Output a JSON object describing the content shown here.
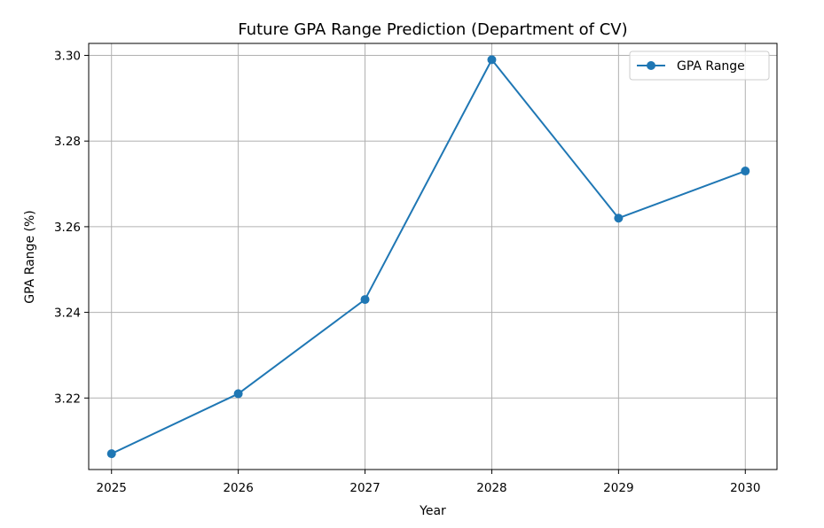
{
  "chart_data": {
    "type": "line",
    "title": "Future GPA Range Prediction (Department of CV)",
    "xlabel": "Year",
    "ylabel": "GPA Range (%)",
    "x": [
      2025,
      2026,
      2027,
      2028,
      2029,
      2030
    ],
    "x_tick_labels": [
      "2025",
      "2026",
      "2027",
      "2028",
      "2029",
      "2030"
    ],
    "y_ticks": [
      3.22,
      3.24,
      3.26,
      3.28,
      3.3
    ],
    "y_tick_labels": [
      "3.22",
      "3.24",
      "3.26",
      "3.28",
      "3.30"
    ],
    "xlim": [
      2024.82,
      2030.25
    ],
    "ylim": [
      3.2033,
      3.3028
    ],
    "grid": true,
    "legend_position": "top-right",
    "series": [
      {
        "name": "GPA Range",
        "color": "#1f77b4",
        "marker": "circle",
        "values": [
          3.207,
          3.221,
          3.243,
          3.299,
          3.262,
          3.273
        ]
      }
    ]
  }
}
